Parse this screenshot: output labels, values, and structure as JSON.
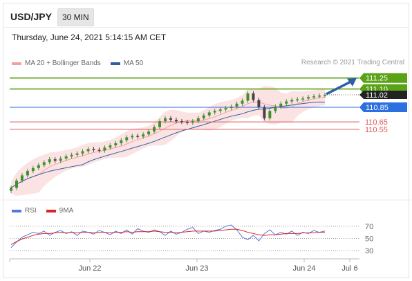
{
  "header": {
    "pair": "USD/JPY",
    "timeframe": "30 MIN",
    "datetime": "Thursday, June 24, 2021 5:14:15 AM CET"
  },
  "legend": {
    "bollinger_label": "MA 20 + Bollinger Bands",
    "ma50_label": "MA 50",
    "rsi_label": "RSI",
    "ma9_label": "9MA",
    "credit": "Research © 2021 Trading Central"
  },
  "colors": {
    "bollinger": "#f4a0a0",
    "ma50": "#2e5fa3",
    "resistance": "#5aa317",
    "pivot": "#2b6fe0",
    "support": "#e05555",
    "price_label": "#222222",
    "rsi": "#5577dd",
    "rsi_ma": "#dd2222"
  },
  "chart_data": [
    {
      "type": "candlestick",
      "title": "",
      "x_ticks": [
        "Jun 22",
        "Jun 23",
        "Jun 24",
        "Jul 6"
      ],
      "price_range": [
        109.65,
        111.37
      ],
      "levels": [
        {
          "name": "resistance",
          "value": 111.25,
          "label": "111.25"
        },
        {
          "name": "resistance",
          "value": 111.1,
          "label": "111.10"
        },
        {
          "name": "pivot",
          "value": 110.85,
          "label": "110.85"
        },
        {
          "name": "support",
          "value": 110.65,
          "label": "110.65"
        },
        {
          "name": "support",
          "value": 110.55,
          "label": "110.55"
        }
      ],
      "last_price": {
        "value": 111.02,
        "label": "111.02"
      },
      "projection": {
        "from": 111.03,
        "to": 111.25
      },
      "closes": [
        109.75,
        109.85,
        109.92,
        109.98,
        110.02,
        110.06,
        110.1,
        110.14,
        110.12,
        110.15,
        110.18,
        110.2,
        110.22,
        110.25,
        110.28,
        110.27,
        110.26,
        110.3,
        110.33,
        110.36,
        110.4,
        110.44,
        110.46,
        110.45,
        110.48,
        110.52,
        110.58,
        110.66,
        110.7,
        110.68,
        110.66,
        110.65,
        110.64,
        110.66,
        110.7,
        110.74,
        110.78,
        110.8,
        110.82,
        110.84,
        110.86,
        110.9,
        110.94,
        111.04,
        110.95,
        110.85,
        110.7,
        110.8,
        110.86,
        110.9,
        110.93,
        110.95,
        110.96,
        110.97,
        110.99,
        111.0,
        111.01,
        111.02
      ]
    },
    {
      "type": "line",
      "title": "",
      "y_ticks": [
        30,
        50,
        70
      ],
      "ylim": [
        20,
        80
      ],
      "series": [
        {
          "name": "RSI",
          "values": [
            35,
            44,
            52,
            56,
            60,
            58,
            62,
            55,
            60,
            63,
            58,
            61,
            55,
            62,
            60,
            57,
            63,
            60,
            56,
            62,
            58,
            64,
            57,
            66,
            62,
            60,
            64,
            61,
            55,
            62,
            57,
            60,
            65,
            68,
            58,
            62,
            60,
            63,
            65,
            70,
            72,
            64,
            52,
            48,
            55,
            46,
            58,
            64,
            56,
            60,
            57,
            62,
            55,
            60,
            58,
            63,
            60,
            62
          ]
        },
        {
          "name": "9MA",
          "values": [
            40,
            45,
            49,
            52,
            55,
            57,
            58,
            58,
            59,
            60,
            59,
            60,
            59,
            60,
            60,
            59,
            60,
            60,
            59,
            60,
            60,
            61,
            60,
            61,
            61,
            61,
            62,
            61,
            60,
            60,
            59,
            60,
            61,
            62,
            62,
            62,
            62,
            62,
            63,
            64,
            65,
            65,
            63,
            60,
            58,
            56,
            55,
            56,
            56,
            57,
            58,
            58,
            58,
            59,
            59,
            59,
            60,
            60
          ]
        }
      ]
    }
  ]
}
